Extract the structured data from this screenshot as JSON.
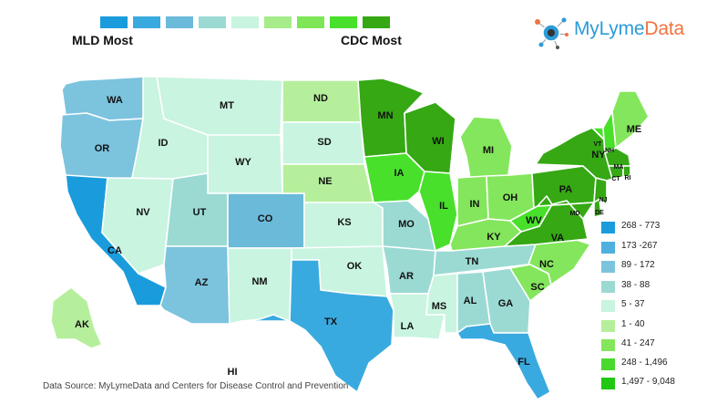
{
  "scale": {
    "colors": [
      "#1a9cdc",
      "#39aadf",
      "#6bbad9",
      "#9bdad3",
      "#c8f4e0",
      "#a6ec8a",
      "#7ee657",
      "#48e02a",
      "#35a814"
    ],
    "left_label": "MLD Most",
    "right_label": "CDC Most"
  },
  "brand": {
    "name_part1": "MyLyme",
    "name_part2": "Data"
  },
  "legend": {
    "items": [
      {
        "label": "268 - 773",
        "color": "#1a9cdc"
      },
      {
        "label": "173 -267",
        "color": "#4fb0df"
      },
      {
        "label": "89 - 172",
        "color": "#7cc3de"
      },
      {
        "label": "38 - 88",
        "color": "#9bdad3"
      },
      {
        "label": "5 - 37",
        "color": "#c8f4e0"
      },
      {
        "label": "1 - 40",
        "color": "#b6ef9c"
      },
      {
        "label": "41 - 247",
        "color": "#84e65c"
      },
      {
        "label": "248 - 1,496",
        "color": "#49d92c"
      },
      {
        "label": "1,497 - 9,048",
        "color": "#20c812"
      }
    ]
  },
  "source": "Data Source: MyLymeData and Centers for Disease Control and Prevention",
  "states": {
    "WA": {
      "color": "#7cc3de"
    },
    "OR": {
      "color": "#7cc3de"
    },
    "CA": {
      "color": "#1a9cdc"
    },
    "NV": {
      "color": "#c8f4e0"
    },
    "ID": {
      "color": "#c8f4e0"
    },
    "MT": {
      "color": "#c8f4e0"
    },
    "WY": {
      "color": "#c8f4e0"
    },
    "UT": {
      "color": "#9bdad3"
    },
    "AZ": {
      "color": "#7cc3de"
    },
    "CO": {
      "color": "#6bbad9"
    },
    "NM": {
      "color": "#c8f4e0"
    },
    "ND": {
      "color": "#b6ef9c"
    },
    "SD": {
      "color": "#c8f4e0"
    },
    "NE": {
      "color": "#b6ef9c"
    },
    "KS": {
      "color": "#c8f4e0"
    },
    "OK": {
      "color": "#c8f4e0"
    },
    "TX": {
      "color": "#39aadf"
    },
    "MN": {
      "color": "#35a814"
    },
    "IA": {
      "color": "#48e02a"
    },
    "MO": {
      "color": "#9bdad3"
    },
    "AR": {
      "color": "#9bdad3"
    },
    "LA": {
      "color": "#c8f4e0"
    },
    "WI": {
      "color": "#35a814"
    },
    "IL": {
      "color": "#48e02a"
    },
    "MI": {
      "color": "#84e65c"
    },
    "IN": {
      "color": "#84e65c"
    },
    "OH": {
      "color": "#84e65c"
    },
    "KY": {
      "color": "#84e65c"
    },
    "TN": {
      "color": "#9bdad3"
    },
    "MS": {
      "color": "#c8f4e0"
    },
    "AL": {
      "color": "#9bdad3"
    },
    "GA": {
      "color": "#9bdad3"
    },
    "FL": {
      "color": "#39aadf"
    },
    "SC": {
      "color": "#84e65c"
    },
    "NC": {
      "color": "#84e65c"
    },
    "VA": {
      "color": "#35a814"
    },
    "WV": {
      "color": "#48e02a"
    },
    "PA": {
      "color": "#35a814"
    },
    "NY": {
      "color": "#35a814"
    },
    "VT": {
      "color": "#48e02a"
    },
    "NH": {
      "color": "#48e02a"
    },
    "ME": {
      "color": "#84e65c"
    },
    "MA": {
      "color": "#35a814"
    },
    "CT": {
      "color": "#35a814"
    },
    "RI": {
      "color": "#35a814"
    },
    "NJ": {
      "color": "#35a814"
    },
    "DE": {
      "color": "#35a814"
    },
    "MD": {
      "color": "#35a814"
    },
    "AK": {
      "color": "#b6ef9c"
    },
    "HI": {
      "color": "#ffffff"
    }
  }
}
